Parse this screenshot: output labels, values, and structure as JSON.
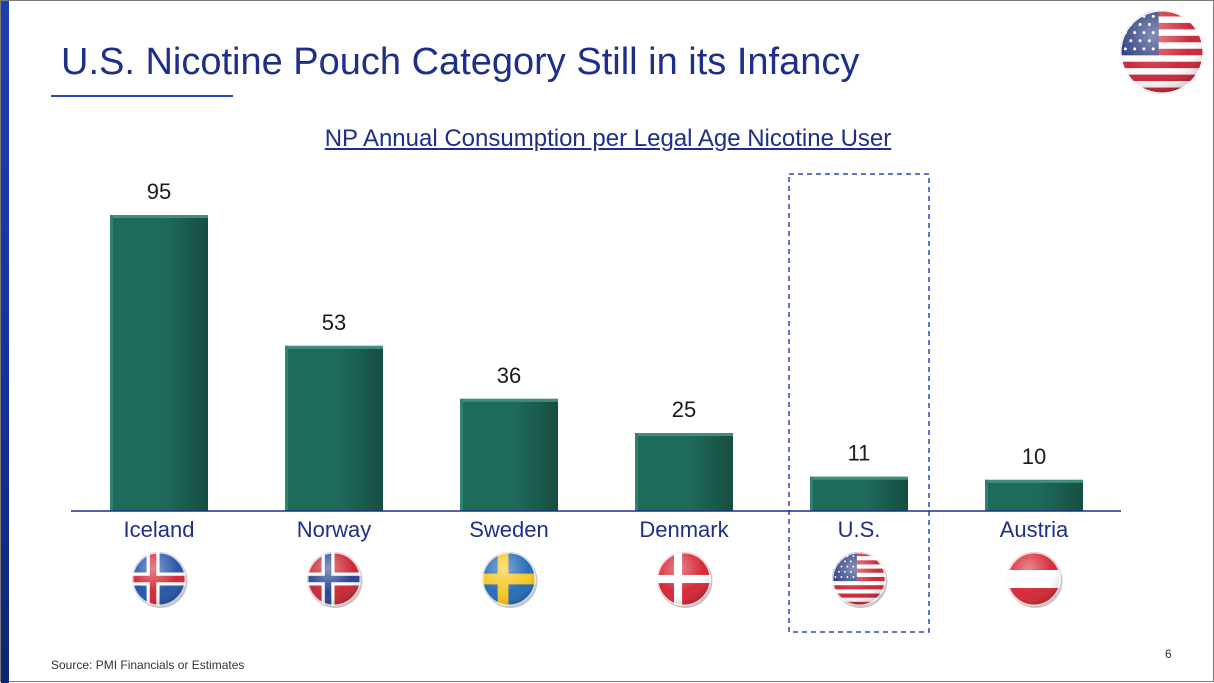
{
  "slide": {
    "title": "U.S. Nicotine Pouch Category Still in its Infancy",
    "source": "Source: PMI Financials or Estimates",
    "page_number": "6",
    "header_flag_icon": "us-flag-icon"
  },
  "colors": {
    "title": "#1d2f8a",
    "accent_bar": "#1f3fb0",
    "bar": "#1e6b5a",
    "bar_dark": "#174d42",
    "axis": "#1d2f8a",
    "highlight_box": "#2b46b8"
  },
  "chart_data": {
    "type": "bar",
    "title": "NP Annual Consumption per Legal Age Nicotine User",
    "xlabel": "",
    "ylabel": "",
    "categories": [
      "Iceland",
      "Norway",
      "Sweden",
      "Denmark",
      "U.S.",
      "Austria"
    ],
    "values": [
      95,
      53,
      36,
      25,
      11,
      10
    ],
    "data_labels": [
      "95",
      "53",
      "36",
      "25",
      "11",
      "10"
    ],
    "flag_icons": [
      "iceland-flag-icon",
      "norway-flag-icon",
      "sweden-flag-icon",
      "denmark-flag-icon",
      "us-flag-icon",
      "austria-flag-icon"
    ],
    "highlighted_category": "U.S.",
    "ylim": [
      0,
      95
    ],
    "grid": false,
    "legend": "none"
  }
}
